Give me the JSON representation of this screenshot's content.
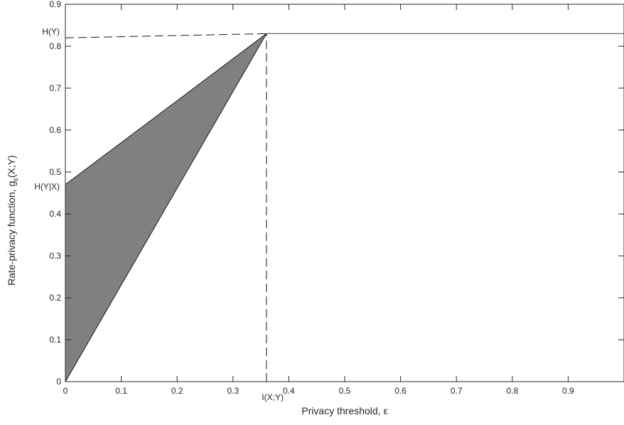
{
  "chart_data": {
    "type": "area",
    "xlabel": "Privacy threshold, ε",
    "ylabel": "Rate-privacy function, gε(X;Y)",
    "ylabel_parts": {
      "main": "Rate-privacy function, g",
      "sub": "ε",
      "tail": "(X;Y)"
    },
    "xlim": [
      0,
      1
    ],
    "ylim": [
      0,
      0.9
    ],
    "xticks": [
      {
        "value": 0,
        "label": "0"
      },
      {
        "value": 0.1,
        "label": "0.1"
      },
      {
        "value": 0.2,
        "label": "0.2"
      },
      {
        "value": 0.3,
        "label": "0.3"
      },
      {
        "value": 0.4,
        "label": "0.4"
      },
      {
        "value": 0.5,
        "label": "0.5"
      },
      {
        "value": 0.6,
        "label": "0.6"
      },
      {
        "value": 0.7,
        "label": "0.7"
      },
      {
        "value": 0.8,
        "label": "0.8"
      },
      {
        "value": 0.9,
        "label": "0.9"
      }
    ],
    "yticks": [
      {
        "value": 0,
        "label": "0"
      },
      {
        "value": 0.1,
        "label": "0.1"
      },
      {
        "value": 0.2,
        "label": "0.2"
      },
      {
        "value": 0.3,
        "label": "0.3"
      },
      {
        "value": 0.4,
        "label": "0.4"
      },
      {
        "value": 0.5,
        "label": "0.5"
      },
      {
        "value": 0.6,
        "label": "0.6"
      },
      {
        "value": 0.7,
        "label": "0.7"
      },
      {
        "value": 0.8,
        "label": "0.8"
      },
      {
        "value": 0.9,
        "label": "0.9"
      }
    ],
    "grid": false,
    "shaded_region": {
      "color": "#808080",
      "points": [
        [
          0,
          0
        ],
        [
          0,
          0.47
        ],
        [
          0.36,
          0.83
        ]
      ]
    },
    "upper_bound_line": {
      "x": [
        0,
        0.36
      ],
      "y": [
        0.47,
        0.83
      ]
    },
    "lower_bound_line": {
      "x": [
        0,
        0.36
      ],
      "y": [
        0,
        0.83
      ]
    },
    "plateau_line": {
      "x": [
        0.36,
        1.0
      ],
      "y": [
        0.83,
        0.83
      ]
    },
    "dashed_lines": [
      {
        "name": "hy-guide",
        "x": [
          0,
          0.36
        ],
        "y": [
          0.82,
          0.83
        ]
      },
      {
        "name": "ixy-guide",
        "x": [
          0.36,
          0.36
        ],
        "y": [
          0,
          0.83
        ]
      }
    ],
    "annotations": {
      "hy": {
        "text": "H(Y)",
        "y": 0.835
      },
      "hyx": {
        "text": "H(Y|X)",
        "y": 0.465
      },
      "ixy": {
        "text": "I(X;Y)",
        "x": 0.36
      }
    }
  }
}
